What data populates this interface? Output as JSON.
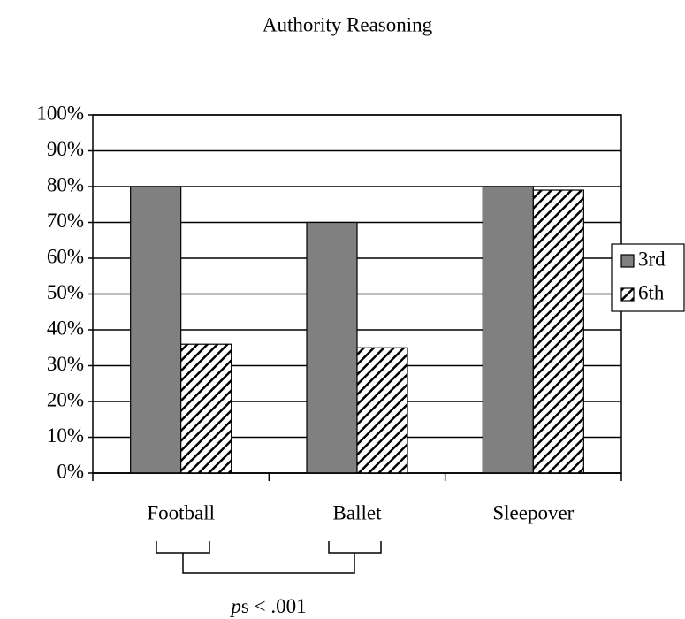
{
  "chart_data": {
    "type": "bar",
    "title": "Authority Reasoning",
    "categories": [
      "Football",
      "Ballet",
      "Sleepover"
    ],
    "series": [
      {
        "name": "3rd",
        "color": "#808080",
        "values": [
          80,
          70,
          80
        ]
      },
      {
        "name": "6th",
        "color": "#000000",
        "hatch": true,
        "values": [
          36,
          35,
          79
        ]
      }
    ],
    "ylim": [
      0,
      100
    ],
    "yticks": [
      {
        "value": 0,
        "label": "0%"
      },
      {
        "value": 10,
        "label": "10%"
      },
      {
        "value": 20,
        "label": "20%"
      },
      {
        "value": 30,
        "label": "30%"
      },
      {
        "value": 40,
        "label": "40%"
      },
      {
        "value": 50,
        "label": "50%"
      },
      {
        "value": 60,
        "label": "60%"
      },
      {
        "value": 70,
        "label": "70%"
      },
      {
        "value": 80,
        "label": "80%"
      },
      {
        "value": 90,
        "label": "90%"
      },
      {
        "value": 100,
        "label": "100%"
      }
    ],
    "grid": true,
    "legend": "right",
    "annotation": [
      "p",
      "s < .001"
    ]
  }
}
